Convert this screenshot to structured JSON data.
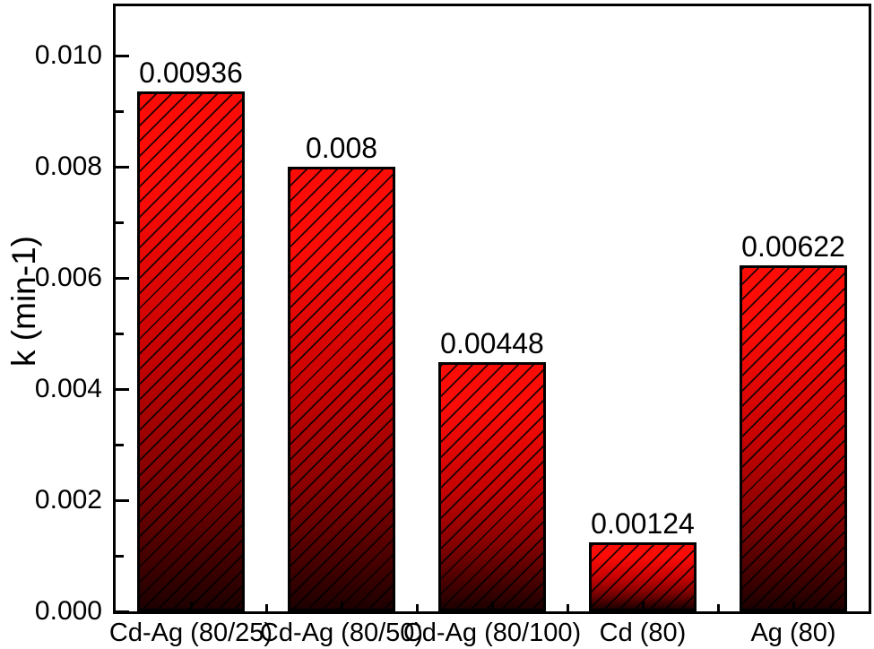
{
  "figure": {
    "background": "#ffffff"
  },
  "chart_data": {
    "type": "bar",
    "title": "",
    "xlabel": "",
    "ylabel": "k (min-1)",
    "categories": [
      "Cd-Ag (80/25)",
      "Cd-Ag (80/50)",
      "Cd-Ag (80/100)",
      "Cd (80)",
      "Ag (80)"
    ],
    "values": [
      0.00936,
      0.008,
      0.00448,
      0.00124,
      0.00622
    ],
    "bar_labels": [
      "0.00936",
      "0.008",
      "0.00448",
      "0.00124",
      "0.00622"
    ],
    "ylim": [
      0,
      0.01089
    ],
    "yticks_major": [
      {
        "value": 0.0,
        "label": "0.000"
      },
      {
        "value": 0.002,
        "label": "0.002"
      },
      {
        "value": 0.004,
        "label": "0.004"
      },
      {
        "value": 0.006,
        "label": "0.006"
      },
      {
        "value": 0.008,
        "label": "0.008"
      },
      {
        "value": 0.01,
        "label": "0.010"
      }
    ],
    "yticks_minor": [
      0.001,
      0.003,
      0.005,
      0.007,
      0.009
    ],
    "grid": false,
    "legend": null,
    "style": {
      "bar_fill_top": "#fc0c06",
      "bar_fill_mid": "#c40202",
      "bar_fill_low": "#8a0101",
      "bar_fill_bottom": "#1e0000",
      "bar_border_color": "#000000",
      "hatch_pattern": "forward-diagonal-lines",
      "hatch_color": "#000000",
      "axis_color": "#000000",
      "text_color": "#000000"
    }
  }
}
